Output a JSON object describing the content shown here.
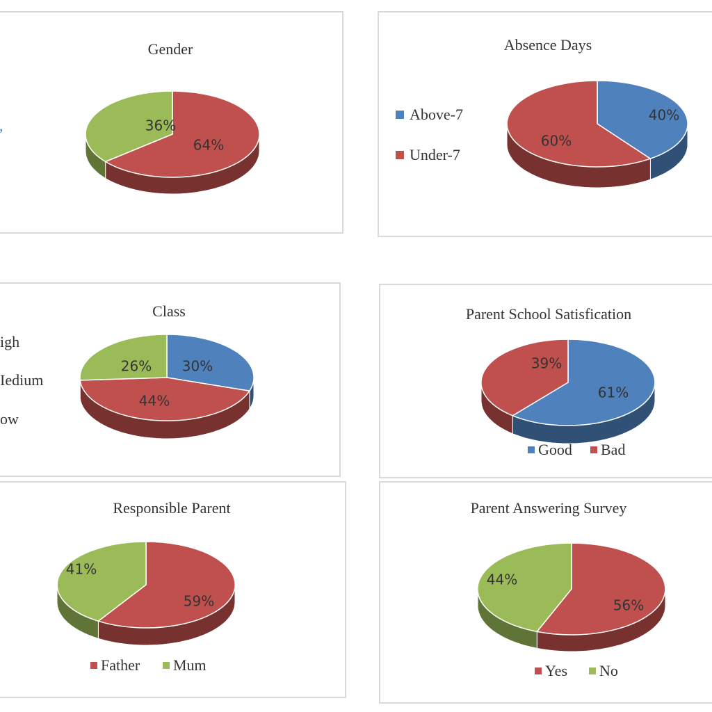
{
  "chart_data": [
    {
      "type": "pie",
      "title": "Gender",
      "slices": [
        {
          "label": "",
          "value": 64,
          "color": "#c0504d",
          "text": "64%"
        },
        {
          "label": "",
          "value": 36,
          "color": "#9bbb59",
          "text": "36%"
        }
      ],
      "legend": [],
      "legend_position": "left"
    },
    {
      "type": "pie",
      "title": "Absence Days",
      "slices": [
        {
          "label": "Above-7",
          "value": 40,
          "color": "#4f81bd",
          "text": "40%"
        },
        {
          "label": "Under-7",
          "value": 60,
          "color": "#c0504d",
          "text": "60%"
        }
      ],
      "legend": [
        "Above-7",
        "Under-7"
      ],
      "legend_position": "left"
    },
    {
      "type": "pie",
      "title": "Class",
      "slices": [
        {
          "label": "igh",
          "value": 30,
          "color": "#4f81bd",
          "text": "30%"
        },
        {
          "label": "Iedium",
          "value": 44,
          "color": "#c0504d",
          "text": "44%"
        },
        {
          "label": "ow",
          "value": 26,
          "color": "#9bbb59",
          "text": "26%"
        }
      ],
      "legend": [
        "igh",
        "Iedium",
        "ow"
      ],
      "legend_position": "left"
    },
    {
      "type": "pie",
      "title": "Parent School Satisfication",
      "slices": [
        {
          "label": "Good",
          "value": 61,
          "color": "#4f81bd",
          "text": "61%"
        },
        {
          "label": "Bad",
          "value": 39,
          "color": "#c0504d",
          "text": "39%"
        }
      ],
      "legend": [
        "Good",
        "Bad"
      ],
      "legend_position": "bottom"
    },
    {
      "type": "pie",
      "title": "Responsible Parent",
      "slices": [
        {
          "label": "Father",
          "value": 59,
          "color": "#c0504d",
          "text": "59%"
        },
        {
          "label": "Mum",
          "value": 41,
          "color": "#9bbb59",
          "text": "41%"
        }
      ],
      "legend": [
        "Father",
        "Mum"
      ],
      "legend_position": "bottom"
    },
    {
      "type": "pie",
      "title": "Parent Answering Survey",
      "slices": [
        {
          "label": "Yes",
          "value": 56,
          "color": "#c0504d",
          "text": "56%"
        },
        {
          "label": "No",
          "value": 44,
          "color": "#9bbb59",
          "text": "44%"
        }
      ],
      "legend": [
        "Yes",
        "No"
      ],
      "legend_position": "bottom"
    }
  ]
}
